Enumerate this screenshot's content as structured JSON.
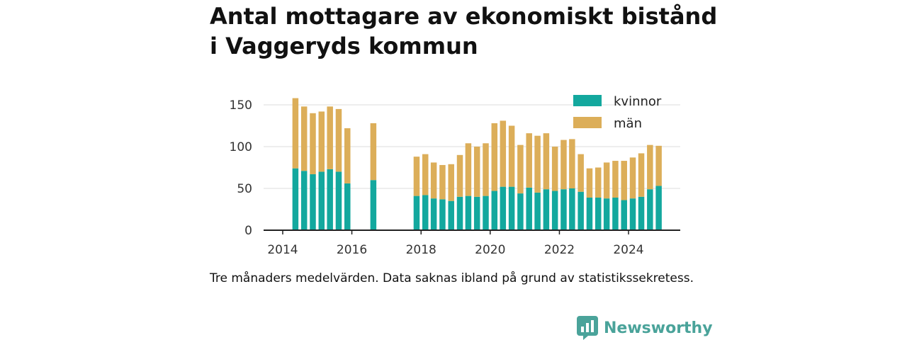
{
  "title": "Antal mottagare av ekonomiskt bistånd i Vaggeryds kommun",
  "caption": "Tre månaders medelvärden. Data saknas ibland på grund av statistikssekretess.",
  "brand": {
    "name": "Newsworthy",
    "color": "#4aa39a",
    "icon": "newsworthy-logo-icon"
  },
  "chart_data": {
    "type": "bar",
    "stacked": true,
    "x_type": "quarterly dates",
    "ylim": [
      0,
      165
    ],
    "yticks": [
      0,
      50,
      100,
      150
    ],
    "ytick_labels": [
      "0",
      "50",
      "100",
      "150"
    ],
    "xticks": [
      "2014",
      "2016",
      "2018",
      "2020",
      "2022",
      "2024"
    ],
    "grid": true,
    "legend_position": "top-right",
    "categories": [
      "2014-05",
      "2014-08",
      "2014-11",
      "2015-02",
      "2015-05",
      "2015-08",
      "2015-11",
      "2016-08",
      "2017-11",
      "2018-02",
      "2018-05",
      "2018-08",
      "2018-11",
      "2019-02",
      "2019-05",
      "2019-08",
      "2019-11",
      "2020-02",
      "2020-05",
      "2020-08",
      "2020-11",
      "2021-02",
      "2021-05",
      "2021-08",
      "2021-11",
      "2022-02",
      "2022-05",
      "2022-08",
      "2022-11",
      "2023-02",
      "2023-05",
      "2023-08",
      "2023-11",
      "2024-02",
      "2024-05",
      "2024-08",
      "2024-11"
    ],
    "series": [
      {
        "name": "kvinnor",
        "color": "#13a89e",
        "values": [
          74,
          71,
          67,
          70,
          73,
          70,
          56,
          60,
          41,
          42,
          38,
          37,
          35,
          40,
          41,
          40,
          41,
          47,
          52,
          52,
          44,
          51,
          45,
          49,
          47,
          49,
          50,
          46,
          39,
          39,
          38,
          39,
          36,
          38,
          40,
          49,
          53
        ]
      },
      {
        "name": "män",
        "color": "#dcae59",
        "values": [
          84,
          77,
          73,
          72,
          75,
          75,
          66,
          68,
          47,
          49,
          43,
          41,
          44,
          50,
          63,
          60,
          63,
          81,
          79,
          73,
          58,
          65,
          68,
          67,
          53,
          59,
          59,
          45,
          35,
          36,
          43,
          44,
          47,
          49,
          52,
          53,
          48
        ]
      }
    ]
  }
}
